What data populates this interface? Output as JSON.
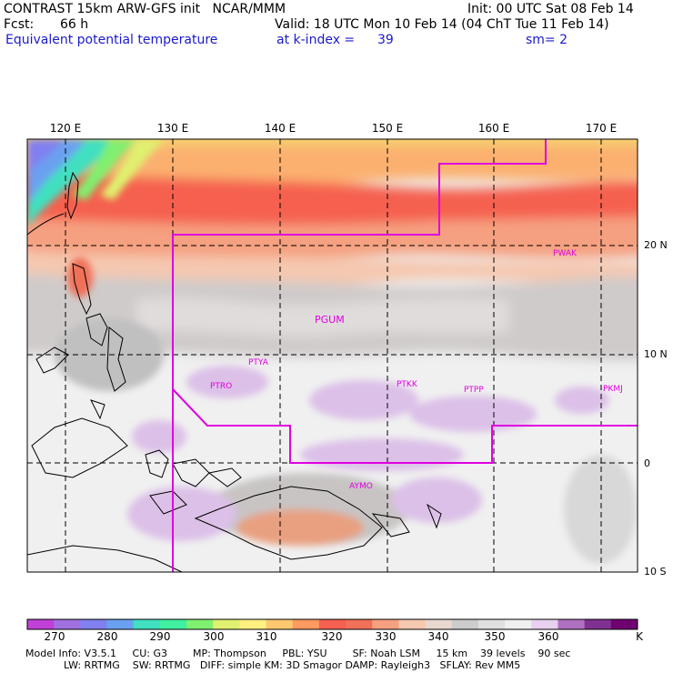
{
  "header": {
    "title": "CONTRAST 15km ARW-GFS init   NCAR/MMM",
    "init": "Init: 00 UTC Sat 08 Feb 14",
    "fcst_label": "Fcst:",
    "fcst_value": "66 h",
    "valid": "Valid: 18 UTC Mon 10 Feb 14 (04 ChT Tue 11 Feb 14)",
    "field": "Equivalent potential temperature",
    "level_label": "at k-index =",
    "level_value": "39",
    "sm": "sm= 2"
  },
  "map": {
    "lon_labels": [
      "120 E",
      "130 E",
      "140 E",
      "150 E",
      "160 E",
      "170 E"
    ],
    "lat_labels": [
      "20 N",
      "10 N",
      "0",
      "10 S"
    ],
    "stations": [
      "PWAK",
      "PGUM",
      "PTYA",
      "PTRO",
      "PTKK",
      "PTPP",
      "PKMJ",
      "AYMO"
    ],
    "boundary_color": "#e000e0"
  },
  "colorbar": {
    "labels": [
      "270",
      "280",
      "290",
      "300",
      "310",
      "320",
      "330",
      "340",
      "350",
      "360"
    ],
    "unit": "K",
    "colors": [
      "#c040d8",
      "#a070e0",
      "#8080f0",
      "#6aa0f0",
      "#40e0c0",
      "#40f0a0",
      "#80f070",
      "#e0f070",
      "#fff080",
      "#ffc870",
      "#ff9a60",
      "#f56050",
      "#f07058",
      "#f5a080",
      "#f5c8b0",
      "#e8d8d0",
      "#cccccc",
      "#e0e0e0",
      "#f0f0f0",
      "#e8d0f0",
      "#b070c0",
      "#803090",
      "#700070"
    ]
  },
  "model_info": {
    "line1": "Model Info: V3.5.1     CU: G3        MP: Thompson     PBL: YSU        SF: Noah LSM     15 km    39 levels    90 sec",
    "line2": "LW: RRTMG    SW: RRTMG   DIFF: simple KM: 3D Smagor DAMP: Rayleigh3   SFLAY: Rev MM5"
  }
}
